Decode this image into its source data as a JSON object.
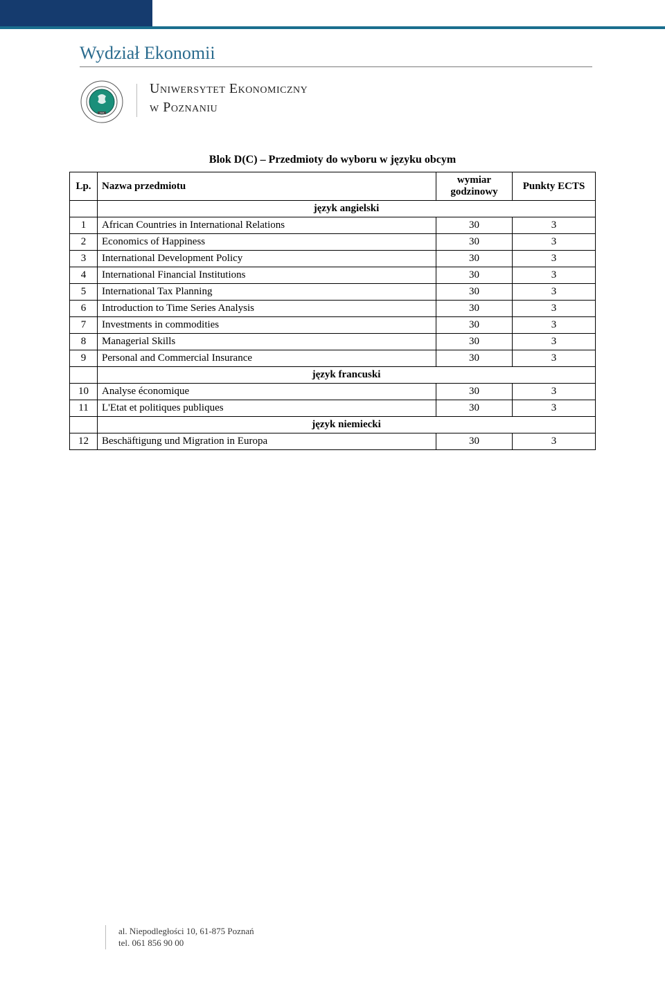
{
  "header": {
    "department": "Wydział Ekonomii",
    "university_line1": "Uniwersytet Ekonomiczny",
    "university_line2": "w Poznaniu",
    "seal": {
      "outer_text_top": "SYTET EKO",
      "year": "1926",
      "border_color": "#3a3a3a",
      "accent_color": "#1a6e8e"
    }
  },
  "colors": {
    "top_bar": "#153b6e",
    "top_stripe": "#1a6e8e",
    "dept_title": "#2a6b8e",
    "table_border": "#000000",
    "background": "#ffffff"
  },
  "table": {
    "title": "Blok D(C) – Przedmioty do wyboru w języku obcym",
    "headers": {
      "lp": "Lp.",
      "name": "Nazwa przedmiotu",
      "hours": "wymiar godzinowy",
      "ects": "Punkty ECTS"
    },
    "sections": [
      {
        "lang": "język angielski",
        "rows": [
          {
            "lp": "1",
            "name": "African Countries in International Relations",
            "hours": "30",
            "ects": "3"
          },
          {
            "lp": "2",
            "name": "Economics of Happiness",
            "hours": "30",
            "ects": "3"
          },
          {
            "lp": "3",
            "name": "International Development Policy",
            "hours": "30",
            "ects": "3"
          },
          {
            "lp": "4",
            "name": "International Financial Institutions",
            "hours": "30",
            "ects": "3"
          },
          {
            "lp": "5",
            "name": "International Tax Planning",
            "hours": "30",
            "ects": "3"
          },
          {
            "lp": "6",
            "name": "Introduction to Time Series Analysis",
            "hours": "30",
            "ects": "3"
          },
          {
            "lp": "7",
            "name": "Investments in commodities",
            "hours": "30",
            "ects": "3"
          },
          {
            "lp": "8",
            "name": "Managerial Skills",
            "hours": "30",
            "ects": "3"
          },
          {
            "lp": "9",
            "name": "Personal and Commercial Insurance",
            "hours": "30",
            "ects": "3"
          }
        ]
      },
      {
        "lang": "język francuski",
        "rows": [
          {
            "lp": "10",
            "name": "Analyse économique",
            "hours": "30",
            "ects": "3"
          },
          {
            "lp": "11",
            "name": "L'Etat et politiques publiques",
            "hours": "30",
            "ects": "3"
          }
        ]
      },
      {
        "lang": "język niemiecki",
        "rows": [
          {
            "lp": "12",
            "name": "Beschäftigung und Migration in Europa",
            "hours": "30",
            "ects": "3"
          }
        ]
      }
    ]
  },
  "footer": {
    "address": "al. Niepodległości 10, 61-875 Poznań",
    "phone": "tel. 061 856 90 00"
  }
}
